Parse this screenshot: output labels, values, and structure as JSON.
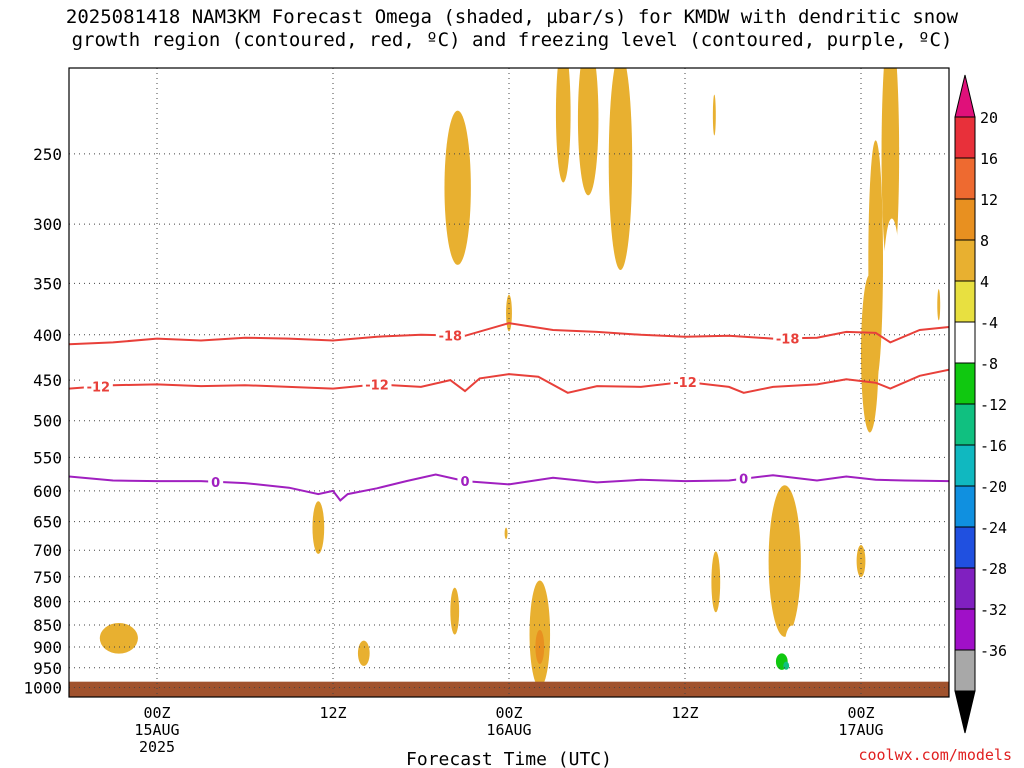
{
  "header": {
    "title_line1": "2025081418 NAM3KM Forecast Omega (shaded, µbar/s) for KMDW with dendritic snow",
    "title_line2": "growth region (contoured, red, ºC) and freezing level (contoured, purple, ºC)"
  },
  "footer": {
    "credit": "coolwx.com/models"
  },
  "chart_data": {
    "type": "time-height",
    "xlabel": "Forecast Time (UTC)",
    "x_ticks": [
      {
        "hour": 6,
        "lines": [
          "00Z",
          "15AUG",
          "2025"
        ]
      },
      {
        "hour": 18,
        "lines": [
          "12Z"
        ]
      },
      {
        "hour": 30,
        "lines": [
          "00Z",
          "16AUG"
        ]
      },
      {
        "hour": 42,
        "lines": [
          "12Z"
        ]
      },
      {
        "hour": 54,
        "lines": [
          "00Z",
          "17AUG"
        ]
      }
    ],
    "xlim_hours": [
      0,
      60
    ],
    "y_scale": "log-pressure",
    "ylim_hPa": [
      1025,
      200
    ],
    "y_ticks": [
      250,
      300,
      350,
      400,
      450,
      500,
      550,
      600,
      650,
      700,
      750,
      800,
      850,
      900,
      950,
      1000
    ],
    "grid": true,
    "ground_below_hPa": 985,
    "ground_color": "#a0522d",
    "contours": [
      {
        "label": "-18",
        "color": "#e8403a",
        "points": [
          [
            0,
            410
          ],
          [
            3,
            408
          ],
          [
            6,
            404
          ],
          [
            9,
            406
          ],
          [
            12,
            403
          ],
          [
            15,
            404
          ],
          [
            18,
            406
          ],
          [
            21,
            402
          ],
          [
            24,
            400
          ],
          [
            27,
            401
          ],
          [
            30,
            388
          ],
          [
            33,
            395
          ],
          [
            36,
            397
          ],
          [
            39,
            400
          ],
          [
            42,
            402
          ],
          [
            45,
            401
          ],
          [
            48,
            404
          ],
          [
            51,
            403
          ],
          [
            53,
            397
          ],
          [
            55,
            398
          ],
          [
            56,
            408
          ],
          [
            58,
            395
          ],
          [
            60,
            392
          ]
        ],
        "label_hours": [
          26,
          49
        ]
      },
      {
        "label": "-12",
        "color": "#e8403a",
        "points": [
          [
            0,
            460
          ],
          [
            3,
            456
          ],
          [
            6,
            455
          ],
          [
            9,
            457
          ],
          [
            12,
            456
          ],
          [
            15,
            458
          ],
          [
            18,
            460
          ],
          [
            21,
            455
          ],
          [
            24,
            458
          ],
          [
            26,
            450
          ],
          [
            27,
            463
          ],
          [
            28,
            448
          ],
          [
            30,
            443
          ],
          [
            32,
            446
          ],
          [
            34,
            465
          ],
          [
            36,
            457
          ],
          [
            39,
            458
          ],
          [
            42,
            452
          ],
          [
            45,
            458
          ],
          [
            46,
            465
          ],
          [
            48,
            458
          ],
          [
            51,
            455
          ],
          [
            53,
            449
          ],
          [
            55,
            453
          ],
          [
            56,
            460
          ],
          [
            58,
            445
          ],
          [
            60,
            438
          ]
        ],
        "label_hours": [
          2,
          21,
          42
        ]
      },
      {
        "label": "0",
        "color": "#a020c0",
        "points": [
          [
            0,
            578
          ],
          [
            3,
            584
          ],
          [
            6,
            585
          ],
          [
            9,
            585
          ],
          [
            12,
            588
          ],
          [
            15,
            595
          ],
          [
            17,
            605
          ],
          [
            18,
            600
          ],
          [
            18.5,
            615
          ],
          [
            19,
            605
          ],
          [
            21,
            596
          ],
          [
            23,
            585
          ],
          [
            25,
            575
          ],
          [
            27,
            585
          ],
          [
            30,
            590
          ],
          [
            33,
            580
          ],
          [
            36,
            587
          ],
          [
            39,
            583
          ],
          [
            42,
            585
          ],
          [
            45,
            584
          ],
          [
            48,
            576
          ],
          [
            51,
            584
          ],
          [
            53,
            578
          ],
          [
            55,
            583
          ],
          [
            57,
            584
          ],
          [
            60,
            585
          ]
        ],
        "label_hours": [
          10,
          27,
          46
        ]
      }
    ],
    "shaded_regions": [
      {
        "omega": 6,
        "center": [
          26.5,
          273
        ],
        "rx": 0.9,
        "ry": 54
      },
      {
        "omega": 6,
        "center": [
          33.7,
          225
        ],
        "rx": 0.5,
        "ry": 40
      },
      {
        "omega": 6,
        "center": [
          35.4,
          228
        ],
        "rx": 0.7,
        "ry": 45
      },
      {
        "omega": 6,
        "center": [
          37.6,
          255
        ],
        "rx": 0.8,
        "ry": 70
      },
      {
        "omega": 6,
        "center": [
          44.0,
          226
        ],
        "rx": 0.1,
        "ry": 12
      },
      {
        "omega": 6,
        "center": [
          30.0,
          378
        ],
        "rx": 0.2,
        "ry": 18
      },
      {
        "omega": 6,
        "center": [
          55.0,
          330
        ],
        "rx": 0.5,
        "ry": 100
      },
      {
        "omega": 6,
        "center": [
          56.0,
          250
        ],
        "rx": 0.6,
        "ry": 80
      },
      {
        "omega": 6,
        "center": [
          56.2,
          368
        ],
        "rx": 0.1,
        "ry": 10
      },
      {
        "omega": 6,
        "center": [
          59.3,
          370
        ],
        "rx": 0.1,
        "ry": 15
      },
      {
        "omega": 6,
        "center": [
          54.6,
          420
        ],
        "rx": 0.6,
        "ry": 85
      },
      {
        "omega": 6,
        "center": [
          17.0,
          660
        ],
        "rx": 0.4,
        "ry": 45
      },
      {
        "omega": 6,
        "center": [
          26.3,
          820
        ],
        "rx": 0.3,
        "ry": 50
      },
      {
        "omega": 6,
        "center": [
          3.4,
          880
        ],
        "rx": 1.3,
        "ry": 35
      },
      {
        "omega": 6,
        "center": [
          20.1,
          915
        ],
        "rx": 0.4,
        "ry": 30
      },
      {
        "omega": 6,
        "center": [
          29.8,
          670
        ],
        "rx": 0.1,
        "ry": 10
      },
      {
        "omega": 6,
        "center": [
          32.1,
          870
        ],
        "rx": 0.7,
        "ry": 120
      },
      {
        "omega": 6,
        "center": [
          44.1,
          760
        ],
        "rx": 0.3,
        "ry": 60
      },
      {
        "omega": 6,
        "center": [
          48.8,
          720
        ],
        "rx": 1.1,
        "ry": 140
      },
      {
        "omega": 6,
        "center": [
          54.0,
          720
        ],
        "rx": 0.3,
        "ry": 30
      },
      {
        "omega": 10,
        "center": [
          32.1,
          900
        ],
        "rx": 0.3,
        "ry": 40
      },
      {
        "omega": -6,
        "center": [
          28.3,
          300
        ],
        "rx": 0.3,
        "ry": 50
      },
      {
        "omega": -6,
        "center": [
          59.4,
          320
        ],
        "rx": 0.4,
        "ry": 30
      },
      {
        "omega": -6,
        "center": [
          59.9,
          225
        ],
        "rx": 0.4,
        "ry": 40
      },
      {
        "omega": -6,
        "center": [
          56.1,
          360
        ],
        "rx": 0.6,
        "ry": 70
      },
      {
        "omega": -6,
        "center": [
          27.2,
          605
        ],
        "rx": 0.4,
        "ry": 25
      },
      {
        "omega": -6,
        "center": [
          29.3,
          605
        ],
        "rx": 0.8,
        "ry": 55
      },
      {
        "omega": -6,
        "center": [
          38.8,
          785
        ],
        "rx": 0.8,
        "ry": 25
      },
      {
        "omega": -6,
        "center": [
          55.4,
          720
        ],
        "rx": 0.8,
        "ry": 200
      },
      {
        "omega": -6,
        "center": [
          57.4,
          700
        ],
        "rx": 0.6,
        "ry": 200
      },
      {
        "omega": -6,
        "center": [
          58.0,
          860
        ],
        "rx": 0.8,
        "ry": 60
      },
      {
        "omega": -6,
        "center": [
          59.7,
          650
        ],
        "rx": 0.6,
        "ry": 60
      },
      {
        "omega": -6,
        "center": [
          48.2,
          925
        ],
        "rx": 0.9,
        "ry": 40
      },
      {
        "omega": -6,
        "center": [
          49.3,
          900
        ],
        "rx": 0.5,
        "ry": 50
      },
      {
        "omega": -10,
        "center": [
          48.6,
          935
        ],
        "rx": 0.4,
        "ry": 20
      },
      {
        "omega": -14,
        "center": [
          48.9,
          945
        ],
        "rx": 0.2,
        "ry": 10
      }
    ],
    "colorbar": {
      "labels": [
        "20",
        "16",
        "12",
        "8",
        "4",
        "-4",
        "-8",
        "-12",
        "-16",
        "-20",
        "-24",
        "-28",
        "-32",
        "-36"
      ],
      "bounds": [
        20,
        16,
        12,
        8,
        4,
        -4,
        -8,
        -12,
        -16,
        -20,
        -24,
        -28,
        -32,
        -36
      ],
      "colors": [
        "#e8303a",
        "#ee6a30",
        "#e89020",
        "#e8b030",
        "#e8e040",
        "#ffffff",
        "#10c810",
        "#10c080",
        "#10b8c0",
        "#1090e0",
        "#2050e0",
        "#8020c0",
        "#a010c8",
        "#a8a8a8"
      ],
      "top_arrow_color": "#e0107a",
      "bottom_arrow_color": "#000000"
    }
  }
}
